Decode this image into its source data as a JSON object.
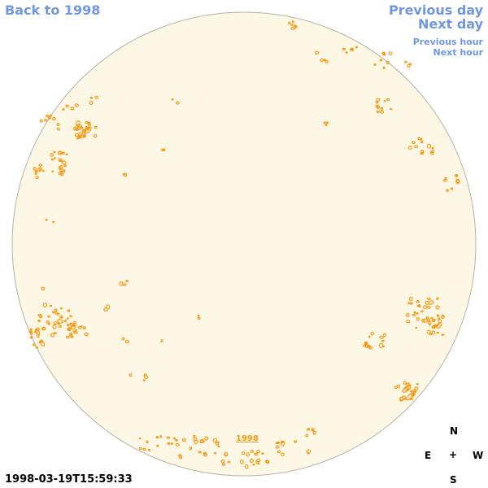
{
  "nav": {
    "back_label": "Back to 1998",
    "prev_day_label": "Previous day",
    "next_day_label": "Next day",
    "prev_hour_label": "Previous hour",
    "next_hour_label": "Next hour"
  },
  "disk": {
    "year_label": "1998",
    "fill_color": "#fdf7e6",
    "edge_color": "#b7b3a8",
    "contour_color": "#f39a18"
  },
  "compass": {
    "north": "N",
    "east": "E",
    "center": "+",
    "west": "W",
    "south": "S"
  },
  "timestamp": "1998-03-19T15:59:33"
}
